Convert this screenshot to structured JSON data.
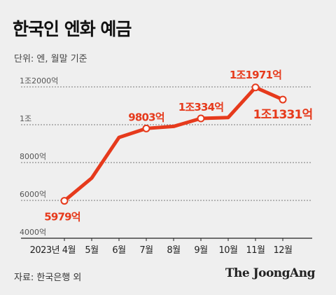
{
  "header": {
    "title": "한국인 엔화 예금",
    "unit": "단위: 엔, 월말 기준"
  },
  "footer": {
    "source": "자료: 한국은행 외",
    "brand": "The JoongAng"
  },
  "colors": {
    "line": "#e63a1c",
    "label": "#e63a1c",
    "grid": "#7a7a7a",
    "axis": "#222222"
  },
  "chart_data": {
    "type": "line",
    "title": "한국인 엔화 예금",
    "xlabel": "",
    "ylabel": "",
    "ylim": [
      4000,
      12400
    ],
    "grid": true,
    "categories": [
      "2023년 4월",
      "5월",
      "6월",
      "7월",
      "8월",
      "9월",
      "10월",
      "11월",
      "12월"
    ],
    "series": [
      {
        "values": [
          5979,
          7180,
          9330,
          9803,
          9910,
          10334,
          10380,
          11971,
          11331
        ]
      }
    ],
    "y_ticks": [
      {
        "value": 12000,
        "label": "1조2000억"
      },
      {
        "value": 10000,
        "label": "1조"
      },
      {
        "value": 8000,
        "label": "8000억"
      },
      {
        "value": 6000,
        "label": "6000억"
      },
      {
        "value": 4000,
        "label": "4000억"
      }
    ],
    "annotations": [
      {
        "index": 0,
        "label": "5979억",
        "marker": true
      },
      {
        "index": 3,
        "label": "9803억",
        "marker": true
      },
      {
        "index": 5,
        "label": "1조334억",
        "marker": true
      },
      {
        "index": 7,
        "label": "1조1971억",
        "marker": true
      },
      {
        "index": 8,
        "label": "1조1331억",
        "marker": true
      }
    ]
  }
}
